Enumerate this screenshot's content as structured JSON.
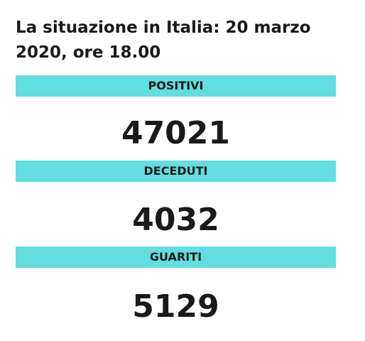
{
  "header": {
    "title": "La situazione in Italia: 20 marzo 2020, ore 18.00"
  },
  "stats": [
    {
      "label": "POSITIVI",
      "value": 47021
    },
    {
      "label": "DECEDUTI",
      "value": 4032
    },
    {
      "label": "GUARITI",
      "value": 5129
    }
  ]
}
